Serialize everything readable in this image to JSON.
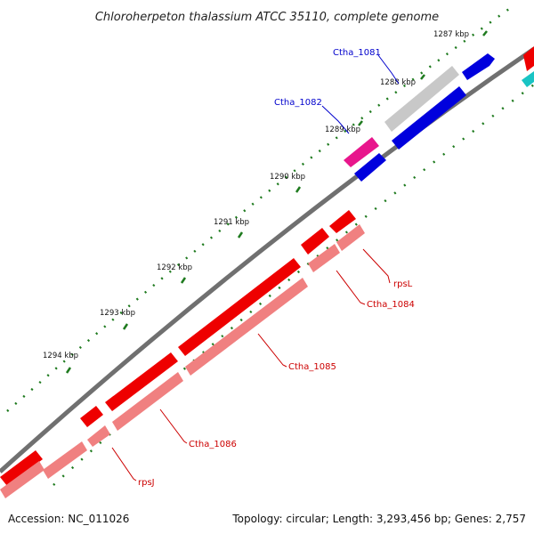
{
  "title": "Chloroherpeton thalassium ATCC 35110, complete genome",
  "ticks": [
    "1287 kbp",
    "1288 kbp",
    "1289 kbp",
    "1290 kbp",
    "1291 kbp",
    "1292 kbp",
    "1293 kbp",
    "1294 kbp"
  ],
  "genes": [
    {
      "label": "Ctha_1081",
      "color": "#0000cc"
    },
    {
      "label": "Ctha_1082",
      "color": "#0000cc"
    },
    {
      "label": "rpsL",
      "color": "#cc0000"
    },
    {
      "label": "Ctha_1084",
      "color": "#cc0000"
    },
    {
      "label": "Ctha_1085",
      "color": "#cc0000"
    },
    {
      "label": "Ctha_1086",
      "color": "#cc0000"
    },
    {
      "label": "rpsJ",
      "color": "#cc0000"
    }
  ],
  "footer": {
    "accession": "Accession: NC_011026",
    "summary": "Topology: circular; Length: 3,293,456 bp; Genes: 2,757"
  },
  "colors": {
    "backbone": "#7a7a7a",
    "tick": "#1e7a1e",
    "red_gene": "#ee0000",
    "pink_gene": "#f08080",
    "blue_gene": "#0000dd",
    "grey_gene": "#c8c8c8",
    "magenta_gene": "#e8168c",
    "cyan_gene": "#19c4c4"
  }
}
